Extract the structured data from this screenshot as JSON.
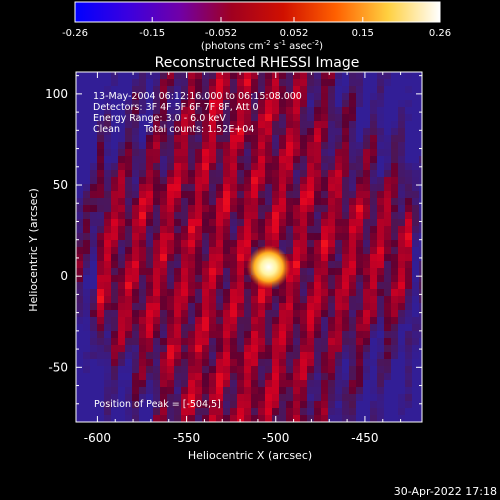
{
  "colorbar": {
    "tick_labels": [
      "-0.26",
      "-0.15",
      "-0.052",
      "0.052",
      "0.15",
      "0.26"
    ],
    "ticks": [
      -0.26,
      -0.15,
      -0.052,
      0.052,
      0.15,
      0.26
    ],
    "range": [
      -0.26,
      0.26
    ],
    "units_text": "(photons cm",
    "units_exp1": "-2",
    "units_mid": " s",
    "units_exp2": "-1",
    "units_end": " asec",
    "units_exp3": "-2",
    "units_close": ")",
    "colormap_stops": [
      "#0000ff",
      "#3a00e0",
      "#7000a8",
      "#a00020",
      "#d01000",
      "#ff6000",
      "#ffd040",
      "#ffffff"
    ]
  },
  "plot": {
    "title": "Reconstructed RHESSI Image",
    "xlabel": "Heliocentric X (arcsec)",
    "ylabel": "Heliocentric Y (arcsec)",
    "xlim": [
      -612,
      -418
    ],
    "ylim": [
      -80,
      112
    ],
    "xticks": [
      -600,
      -550,
      -500,
      -450
    ],
    "xtick_labels": [
      "-600",
      "-550",
      "-500",
      "-450"
    ],
    "yticks": [
      -50,
      0,
      50,
      100
    ],
    "ytick_labels": [
      "-50",
      "0",
      "50",
      "100"
    ]
  },
  "annotations": {
    "line1": "13-May-2004 06:12:16.000 to 06:15:08.000",
    "line2": "Detectors: 3F 4F 5F 6F 7F 8F, Att 0",
    "line3": "Energy Range: 3.0 - 6.0 keV",
    "line4a": "Clean",
    "line4b": "Total counts: 1.52E+04",
    "peak_label": "Position of Peak = [-504,5]"
  },
  "peak": {
    "x": -504,
    "y": 5
  },
  "timestamp": "30-Apr-2022 17:18"
}
